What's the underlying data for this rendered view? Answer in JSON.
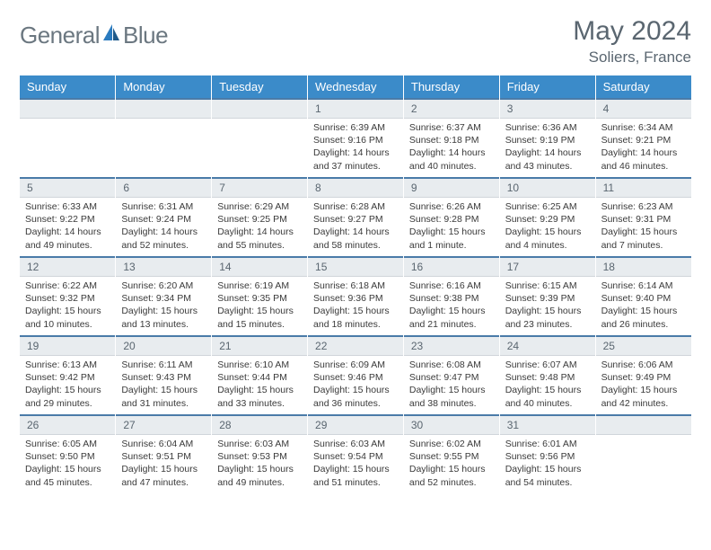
{
  "brand": {
    "part1": "General",
    "part2": "Blue",
    "accent": "#2b7bbf"
  },
  "title": "May 2024",
  "location": "Soliers, France",
  "colors": {
    "header_bg": "#3b8bc9",
    "header_text": "#ffffff",
    "daynum_bg": "#e8ecef",
    "daynum_border_top": "#4a7ba8",
    "text_gray": "#5a6670"
  },
  "weekdays": [
    "Sunday",
    "Monday",
    "Tuesday",
    "Wednesday",
    "Thursday",
    "Friday",
    "Saturday"
  ],
  "weeks": [
    [
      {
        "blank": true
      },
      {
        "blank": true
      },
      {
        "blank": true
      },
      {
        "n": "1",
        "sr": "6:39 AM",
        "ss": "9:16 PM",
        "dl": "14 hours and 37 minutes."
      },
      {
        "n": "2",
        "sr": "6:37 AM",
        "ss": "9:18 PM",
        "dl": "14 hours and 40 minutes."
      },
      {
        "n": "3",
        "sr": "6:36 AM",
        "ss": "9:19 PM",
        "dl": "14 hours and 43 minutes."
      },
      {
        "n": "4",
        "sr": "6:34 AM",
        "ss": "9:21 PM",
        "dl": "14 hours and 46 minutes."
      }
    ],
    [
      {
        "n": "5",
        "sr": "6:33 AM",
        "ss": "9:22 PM",
        "dl": "14 hours and 49 minutes."
      },
      {
        "n": "6",
        "sr": "6:31 AM",
        "ss": "9:24 PM",
        "dl": "14 hours and 52 minutes."
      },
      {
        "n": "7",
        "sr": "6:29 AM",
        "ss": "9:25 PM",
        "dl": "14 hours and 55 minutes."
      },
      {
        "n": "8",
        "sr": "6:28 AM",
        "ss": "9:27 PM",
        "dl": "14 hours and 58 minutes."
      },
      {
        "n": "9",
        "sr": "6:26 AM",
        "ss": "9:28 PM",
        "dl": "15 hours and 1 minute."
      },
      {
        "n": "10",
        "sr": "6:25 AM",
        "ss": "9:29 PM",
        "dl": "15 hours and 4 minutes."
      },
      {
        "n": "11",
        "sr": "6:23 AM",
        "ss": "9:31 PM",
        "dl": "15 hours and 7 minutes."
      }
    ],
    [
      {
        "n": "12",
        "sr": "6:22 AM",
        "ss": "9:32 PM",
        "dl": "15 hours and 10 minutes."
      },
      {
        "n": "13",
        "sr": "6:20 AM",
        "ss": "9:34 PM",
        "dl": "15 hours and 13 minutes."
      },
      {
        "n": "14",
        "sr": "6:19 AM",
        "ss": "9:35 PM",
        "dl": "15 hours and 15 minutes."
      },
      {
        "n": "15",
        "sr": "6:18 AM",
        "ss": "9:36 PM",
        "dl": "15 hours and 18 minutes."
      },
      {
        "n": "16",
        "sr": "6:16 AM",
        "ss": "9:38 PM",
        "dl": "15 hours and 21 minutes."
      },
      {
        "n": "17",
        "sr": "6:15 AM",
        "ss": "9:39 PM",
        "dl": "15 hours and 23 minutes."
      },
      {
        "n": "18",
        "sr": "6:14 AM",
        "ss": "9:40 PM",
        "dl": "15 hours and 26 minutes."
      }
    ],
    [
      {
        "n": "19",
        "sr": "6:13 AM",
        "ss": "9:42 PM",
        "dl": "15 hours and 29 minutes."
      },
      {
        "n": "20",
        "sr": "6:11 AM",
        "ss": "9:43 PM",
        "dl": "15 hours and 31 minutes."
      },
      {
        "n": "21",
        "sr": "6:10 AM",
        "ss": "9:44 PM",
        "dl": "15 hours and 33 minutes."
      },
      {
        "n": "22",
        "sr": "6:09 AM",
        "ss": "9:46 PM",
        "dl": "15 hours and 36 minutes."
      },
      {
        "n": "23",
        "sr": "6:08 AM",
        "ss": "9:47 PM",
        "dl": "15 hours and 38 minutes."
      },
      {
        "n": "24",
        "sr": "6:07 AM",
        "ss": "9:48 PM",
        "dl": "15 hours and 40 minutes."
      },
      {
        "n": "25",
        "sr": "6:06 AM",
        "ss": "9:49 PM",
        "dl": "15 hours and 42 minutes."
      }
    ],
    [
      {
        "n": "26",
        "sr": "6:05 AM",
        "ss": "9:50 PM",
        "dl": "15 hours and 45 minutes."
      },
      {
        "n": "27",
        "sr": "6:04 AM",
        "ss": "9:51 PM",
        "dl": "15 hours and 47 minutes."
      },
      {
        "n": "28",
        "sr": "6:03 AM",
        "ss": "9:53 PM",
        "dl": "15 hours and 49 minutes."
      },
      {
        "n": "29",
        "sr": "6:03 AM",
        "ss": "9:54 PM",
        "dl": "15 hours and 51 minutes."
      },
      {
        "n": "30",
        "sr": "6:02 AM",
        "ss": "9:55 PM",
        "dl": "15 hours and 52 minutes."
      },
      {
        "n": "31",
        "sr": "6:01 AM",
        "ss": "9:56 PM",
        "dl": "15 hours and 54 minutes."
      },
      {
        "blank": true
      }
    ]
  ],
  "labels": {
    "sunrise": "Sunrise:",
    "sunset": "Sunset:",
    "daylight": "Daylight:"
  }
}
